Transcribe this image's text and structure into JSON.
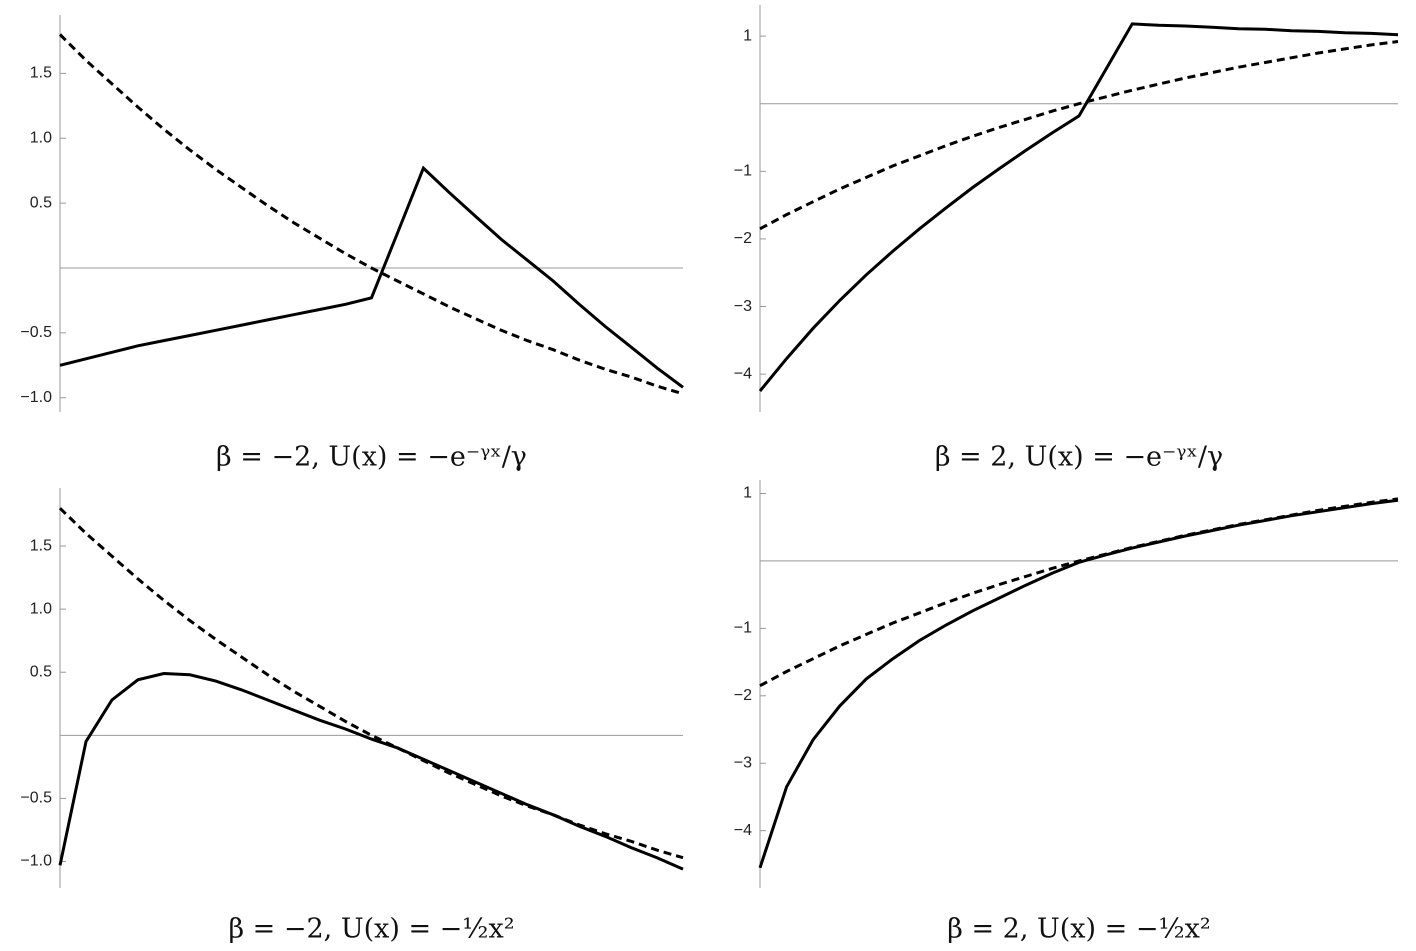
{
  "chart_data": [
    {
      "type": "line",
      "title": "β = −2, U(x) = −e⁻ᵞˣ/γ",
      "ylim": [
        -1.11,
        1.95
      ],
      "yticks": [
        1.5,
        {
          "value": 1,
          "label": "1.0"
        },
        0.5,
        {
          "value": -0.5,
          "label": "−0.5"
        },
        {
          "value": -1,
          "label": "−1.0"
        }
      ],
      "series": [
        {
          "color": "#000000",
          "style": "solid",
          "values": [
            -0.75,
            -0.7,
            -0.65,
            -0.6,
            -0.56,
            -0.52,
            -0.48,
            -0.44,
            -0.4,
            -0.36,
            -0.32,
            -0.28,
            -0.23,
            0.27,
            0.77,
            0.58,
            0.4,
            0.22,
            0.06,
            -0.1,
            -0.28,
            -0.45,
            -0.61,
            -0.77,
            -0.92
          ]
        },
        {
          "color": "#000000",
          "style": "dashed",
          "values": [
            1.8,
            1.6,
            1.42,
            1.24,
            1.07,
            0.91,
            0.76,
            0.62,
            0.48,
            0.35,
            0.23,
            0.11,
            0,
            -0.1,
            -0.2,
            -0.3,
            -0.39,
            -0.48,
            -0.56,
            -0.63,
            -0.71,
            -0.78,
            -0.84,
            -0.91,
            -0.97
          ]
        }
      ]
    },
    {
      "type": "line",
      "title": "β = 2, U(x) = −e⁻ᵞˣ/γ",
      "ylim": [
        -4.56,
        1.46
      ],
      "yticks": [
        1,
        {
          "value": -1,
          "label": "−1"
        },
        {
          "value": -2,
          "label": "−2"
        },
        {
          "value": -3,
          "label": "−3"
        },
        {
          "value": -4,
          "label": "−4"
        }
      ],
      "series": [
        {
          "color": "#000000",
          "style": "solid",
          "values": [
            -4.25,
            -3.77,
            -3.32,
            -2.91,
            -2.53,
            -2.18,
            -1.85,
            -1.54,
            -1.24,
            -0.96,
            -0.69,
            -0.43,
            -0.18,
            0.5,
            1.18,
            1.16,
            1.15,
            1.13,
            1.11,
            1.1,
            1.08,
            1.07,
            1.05,
            1.04,
            1.02
          ]
        },
        {
          "color": "#000000",
          "style": "dashed",
          "values": [
            -1.85,
            -1.64,
            -1.45,
            -1.26,
            -1.09,
            -0.92,
            -0.77,
            -0.62,
            -0.48,
            -0.35,
            -0.23,
            -0.11,
            0,
            0.1,
            0.2,
            0.29,
            0.38,
            0.46,
            0.54,
            0.61,
            0.68,
            0.75,
            0.81,
            0.87,
            0.92
          ]
        }
      ]
    },
    {
      "type": "line",
      "title": "β = −2, U(x) = −½x²",
      "ylim": [
        -1.21,
        1.96
      ],
      "yticks": [
        1.5,
        {
          "value": 1,
          "label": "1.0"
        },
        0.5,
        {
          "value": -0.5,
          "label": "−0.5"
        },
        {
          "value": -1,
          "label": "−1.0"
        }
      ],
      "series": [
        {
          "color": "#000000",
          "style": "solid",
          "values": [
            -1.03,
            -0.05,
            0.28,
            0.44,
            0.49,
            0.48,
            0.43,
            0.36,
            0.28,
            0.2,
            0.12,
            0.05,
            -0.03,
            -0.1,
            -0.19,
            -0.28,
            -0.37,
            -0.46,
            -0.55,
            -0.63,
            -0.72,
            -0.8,
            -0.89,
            -0.97,
            -1.06
          ]
        },
        {
          "color": "#000000",
          "style": "dashed",
          "values": [
            1.8,
            1.6,
            1.42,
            1.24,
            1.07,
            0.91,
            0.76,
            0.62,
            0.48,
            0.35,
            0.23,
            0.11,
            0,
            -0.1,
            -0.2,
            -0.3,
            -0.39,
            -0.48,
            -0.56,
            -0.63,
            -0.71,
            -0.78,
            -0.84,
            -0.91,
            -0.97
          ]
        }
      ]
    },
    {
      "type": "line",
      "title": "β = 2, U(x) = −½x²",
      "ylim": [
        -4.85,
        1.2
      ],
      "yticks": [
        1,
        {
          "value": -1,
          "label": "−1"
        },
        {
          "value": -2,
          "label": "−2"
        },
        {
          "value": -3,
          "label": "−3"
        },
        {
          "value": -4,
          "label": "−4"
        }
      ],
      "series": [
        {
          "color": "#000000",
          "style": "solid",
          "values": [
            -4.55,
            -3.35,
            -2.65,
            -2.15,
            -1.75,
            -1.45,
            -1.18,
            -0.95,
            -0.74,
            -0.55,
            -0.36,
            -0.18,
            -0.02,
            0.09,
            0.19,
            0.28,
            0.37,
            0.45,
            0.53,
            0.6,
            0.67,
            0.73,
            0.79,
            0.85,
            0.9
          ]
        },
        {
          "color": "#000000",
          "style": "dashed",
          "values": [
            -1.85,
            -1.64,
            -1.45,
            -1.26,
            -1.09,
            -0.92,
            -0.77,
            -0.62,
            -0.48,
            -0.35,
            -0.23,
            -0.11,
            0,
            0.1,
            0.2,
            0.29,
            0.38,
            0.46,
            0.54,
            0.61,
            0.68,
            0.75,
            0.81,
            0.87,
            0.92
          ]
        }
      ]
    }
  ]
}
